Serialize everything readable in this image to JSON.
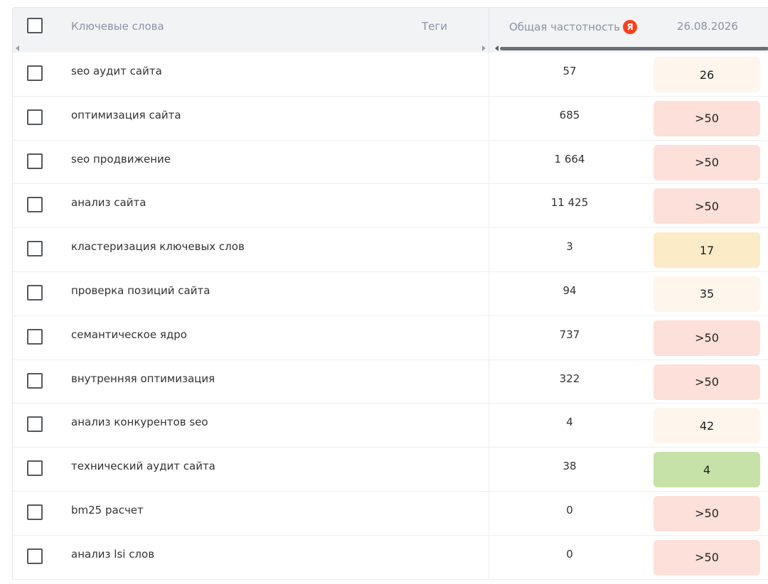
{
  "header": {
    "keywords_label": "Ключевые слова",
    "tags_label": "Теги",
    "frequency_label": "Общая частотность",
    "yandex_badge": "Я",
    "date_label": "26.08.2026"
  },
  "colors": {
    "yandex_red": "#fc3f1d",
    "pos_over50": "#fde0d9",
    "pos_light": "#fef5ec",
    "pos_mid": "#fcebc7",
    "pos_top": "#c6e2a8"
  },
  "rows": [
    {
      "keyword": "seo аудит сайта",
      "frequency": "57",
      "position": "26",
      "color": "#fef5ec"
    },
    {
      "keyword": "оптимизация сайта",
      "frequency": "685",
      "position": ">50",
      "color": "#fde0d9"
    },
    {
      "keyword": "seo продвижение",
      "frequency": "1 664",
      "position": ">50",
      "color": "#fde0d9"
    },
    {
      "keyword": "анализ сайта",
      "frequency": "11 425",
      "position": ">50",
      "color": "#fde0d9"
    },
    {
      "keyword": "кластеризация ключевых слов",
      "frequency": "3",
      "position": "17",
      "color": "#fcebc7"
    },
    {
      "keyword": "проверка позиций сайта",
      "frequency": "94",
      "position": "35",
      "color": "#fef5ec"
    },
    {
      "keyword": "семантическое ядро",
      "frequency": "737",
      "position": ">50",
      "color": "#fde0d9"
    },
    {
      "keyword": "внутренняя оптимизация",
      "frequency": "322",
      "position": ">50",
      "color": "#fde0d9"
    },
    {
      "keyword": "анализ конкурентов seo",
      "frequency": "4",
      "position": "42",
      "color": "#fef5ec"
    },
    {
      "keyword": "технический аудит сайта",
      "frequency": "38",
      "position": "4",
      "color": "#c6e2a8"
    },
    {
      "keyword": "bm25 расчет",
      "frequency": "0",
      "position": ">50",
      "color": "#fde0d9"
    },
    {
      "keyword": "анализ lsi слов",
      "frequency": "0",
      "position": ">50",
      "color": "#fde0d9"
    }
  ]
}
